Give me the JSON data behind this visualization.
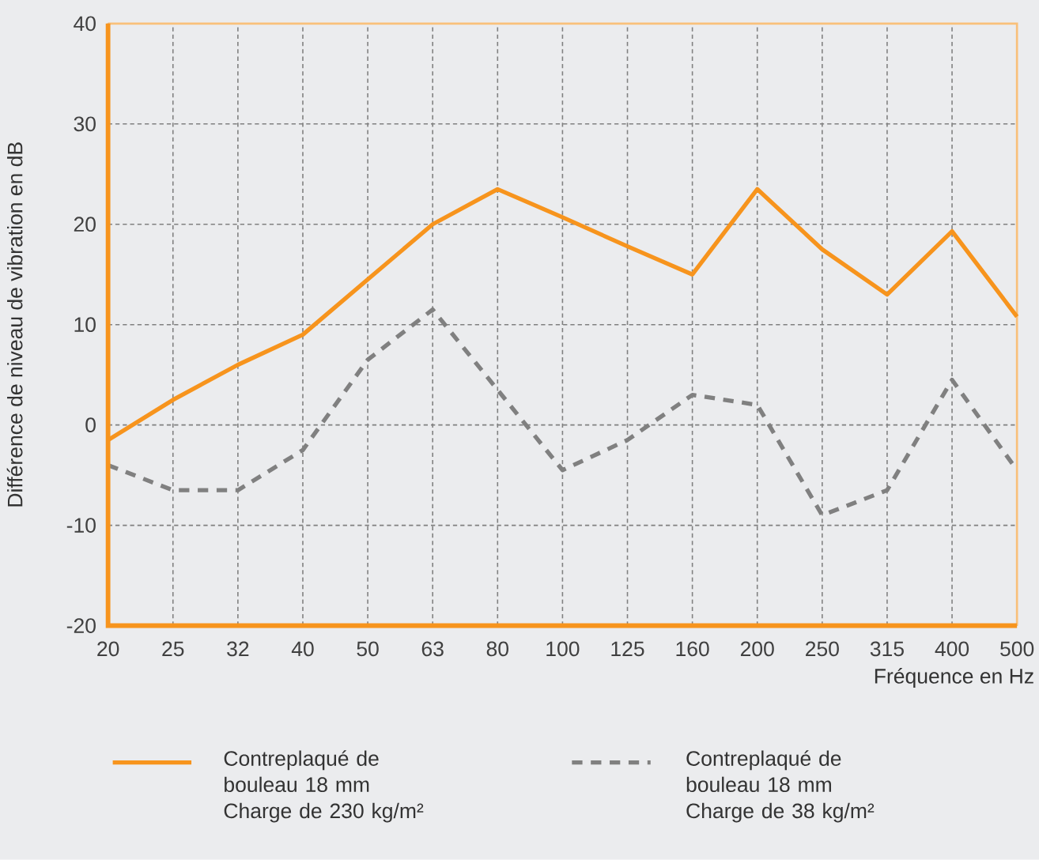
{
  "chart_data": {
    "type": "line",
    "xlabel": "Fréquence en Hz",
    "ylabel": "Différence de niveau de vibration en dB",
    "categories": [
      "20",
      "25",
      "32",
      "40",
      "50",
      "63",
      "80",
      "100",
      "125",
      "160",
      "200",
      "250",
      "315",
      "400",
      "500"
    ],
    "ylim": [
      -20,
      40
    ],
    "yticks": [
      -20,
      -10,
      0,
      10,
      20,
      30,
      40
    ],
    "grid": true,
    "legend": "bottom",
    "series": [
      {
        "name": "Contreplaqué de bouleau 18 mm Charge de 230 kg/m²",
        "color": "#f7941d",
        "line_style": "solid",
        "values": [
          -1.5,
          2.5,
          6,
          9,
          14.5,
          20,
          23.5,
          20.7,
          17.8,
          15,
          23.5,
          17.5,
          13,
          19.3,
          10.8
        ]
      },
      {
        "name": "Contreplaqué de bouleau 18 mm Charge de 38 kg/m²",
        "color": "#808080",
        "line_style": "dashed",
        "values": [
          -4,
          -6.5,
          -6.5,
          -2.5,
          6.5,
          11.5,
          3.5,
          -4.5,
          -1.5,
          3,
          2,
          -9,
          -6.5,
          4.5,
          -4.5
        ]
      }
    ]
  }
}
